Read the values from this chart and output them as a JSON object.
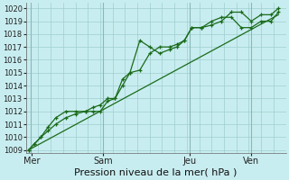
{
  "title": "",
  "xlabel": "Pression niveau de la mer( hPa )",
  "ylabel": "",
  "bg_color": "#c8edf0",
  "grid_color": "#9fcece",
  "vline_color": "#8ab8b8",
  "line_color": "#1a6b1a",
  "ylim": [
    1008.8,
    1020.4
  ],
  "yticks": [
    1009,
    1010,
    1011,
    1012,
    1013,
    1014,
    1015,
    1016,
    1017,
    1018,
    1019,
    1020
  ],
  "day_labels": [
    "Mer",
    "Sam",
    "Jeu",
    "Ven"
  ],
  "day_positions": [
    0.12,
    3.0,
    6.5,
    9.0
  ],
  "vline_positions": [
    0.08,
    3.0,
    6.5,
    9.0
  ],
  "series1_x": [
    0.0,
    0.25,
    0.5,
    0.8,
    1.1,
    1.5,
    1.9,
    2.3,
    2.6,
    2.9,
    3.2,
    3.5,
    3.8,
    4.1,
    4.5,
    4.9,
    5.3,
    5.7,
    6.0,
    6.3,
    6.6,
    7.0,
    7.4,
    7.8,
    8.2,
    8.6,
    9.0,
    9.4,
    9.8,
    10.1
  ],
  "series1_y": [
    1009.0,
    1009.5,
    1010.0,
    1010.5,
    1011.0,
    1011.5,
    1011.8,
    1012.0,
    1012.0,
    1012.0,
    1012.8,
    1013.0,
    1014.5,
    1015.0,
    1015.2,
    1016.5,
    1017.0,
    1017.0,
    1017.2,
    1017.5,
    1018.5,
    1018.5,
    1019.0,
    1019.3,
    1019.3,
    1018.5,
    1018.5,
    1019.0,
    1019.0,
    1019.7
  ],
  "series2_x": [
    0.0,
    0.25,
    0.5,
    0.8,
    1.1,
    1.5,
    1.9,
    2.3,
    2.6,
    2.9,
    3.2,
    3.5,
    3.8,
    4.1,
    4.5,
    4.9,
    5.3,
    5.7,
    6.0,
    6.3,
    6.6,
    7.0,
    7.4,
    7.8,
    8.2,
    8.6,
    9.0,
    9.4,
    9.8,
    10.1
  ],
  "series2_y": [
    1009.0,
    1009.5,
    1010.0,
    1010.8,
    1011.5,
    1012.0,
    1012.0,
    1012.0,
    1012.3,
    1012.5,
    1013.0,
    1013.0,
    1014.0,
    1015.0,
    1017.5,
    1017.0,
    1016.5,
    1016.8,
    1017.0,
    1017.5,
    1018.5,
    1018.5,
    1018.7,
    1019.0,
    1019.7,
    1019.7,
    1019.0,
    1019.5,
    1019.5,
    1020.0
  ],
  "trend_x": [
    0.0,
    10.1
  ],
  "trend_y": [
    1009.0,
    1019.5
  ],
  "xlim": [
    -0.1,
    10.4
  ],
  "xlabel_fontsize": 8,
  "ytick_fontsize": 6,
  "xtick_fontsize": 7
}
